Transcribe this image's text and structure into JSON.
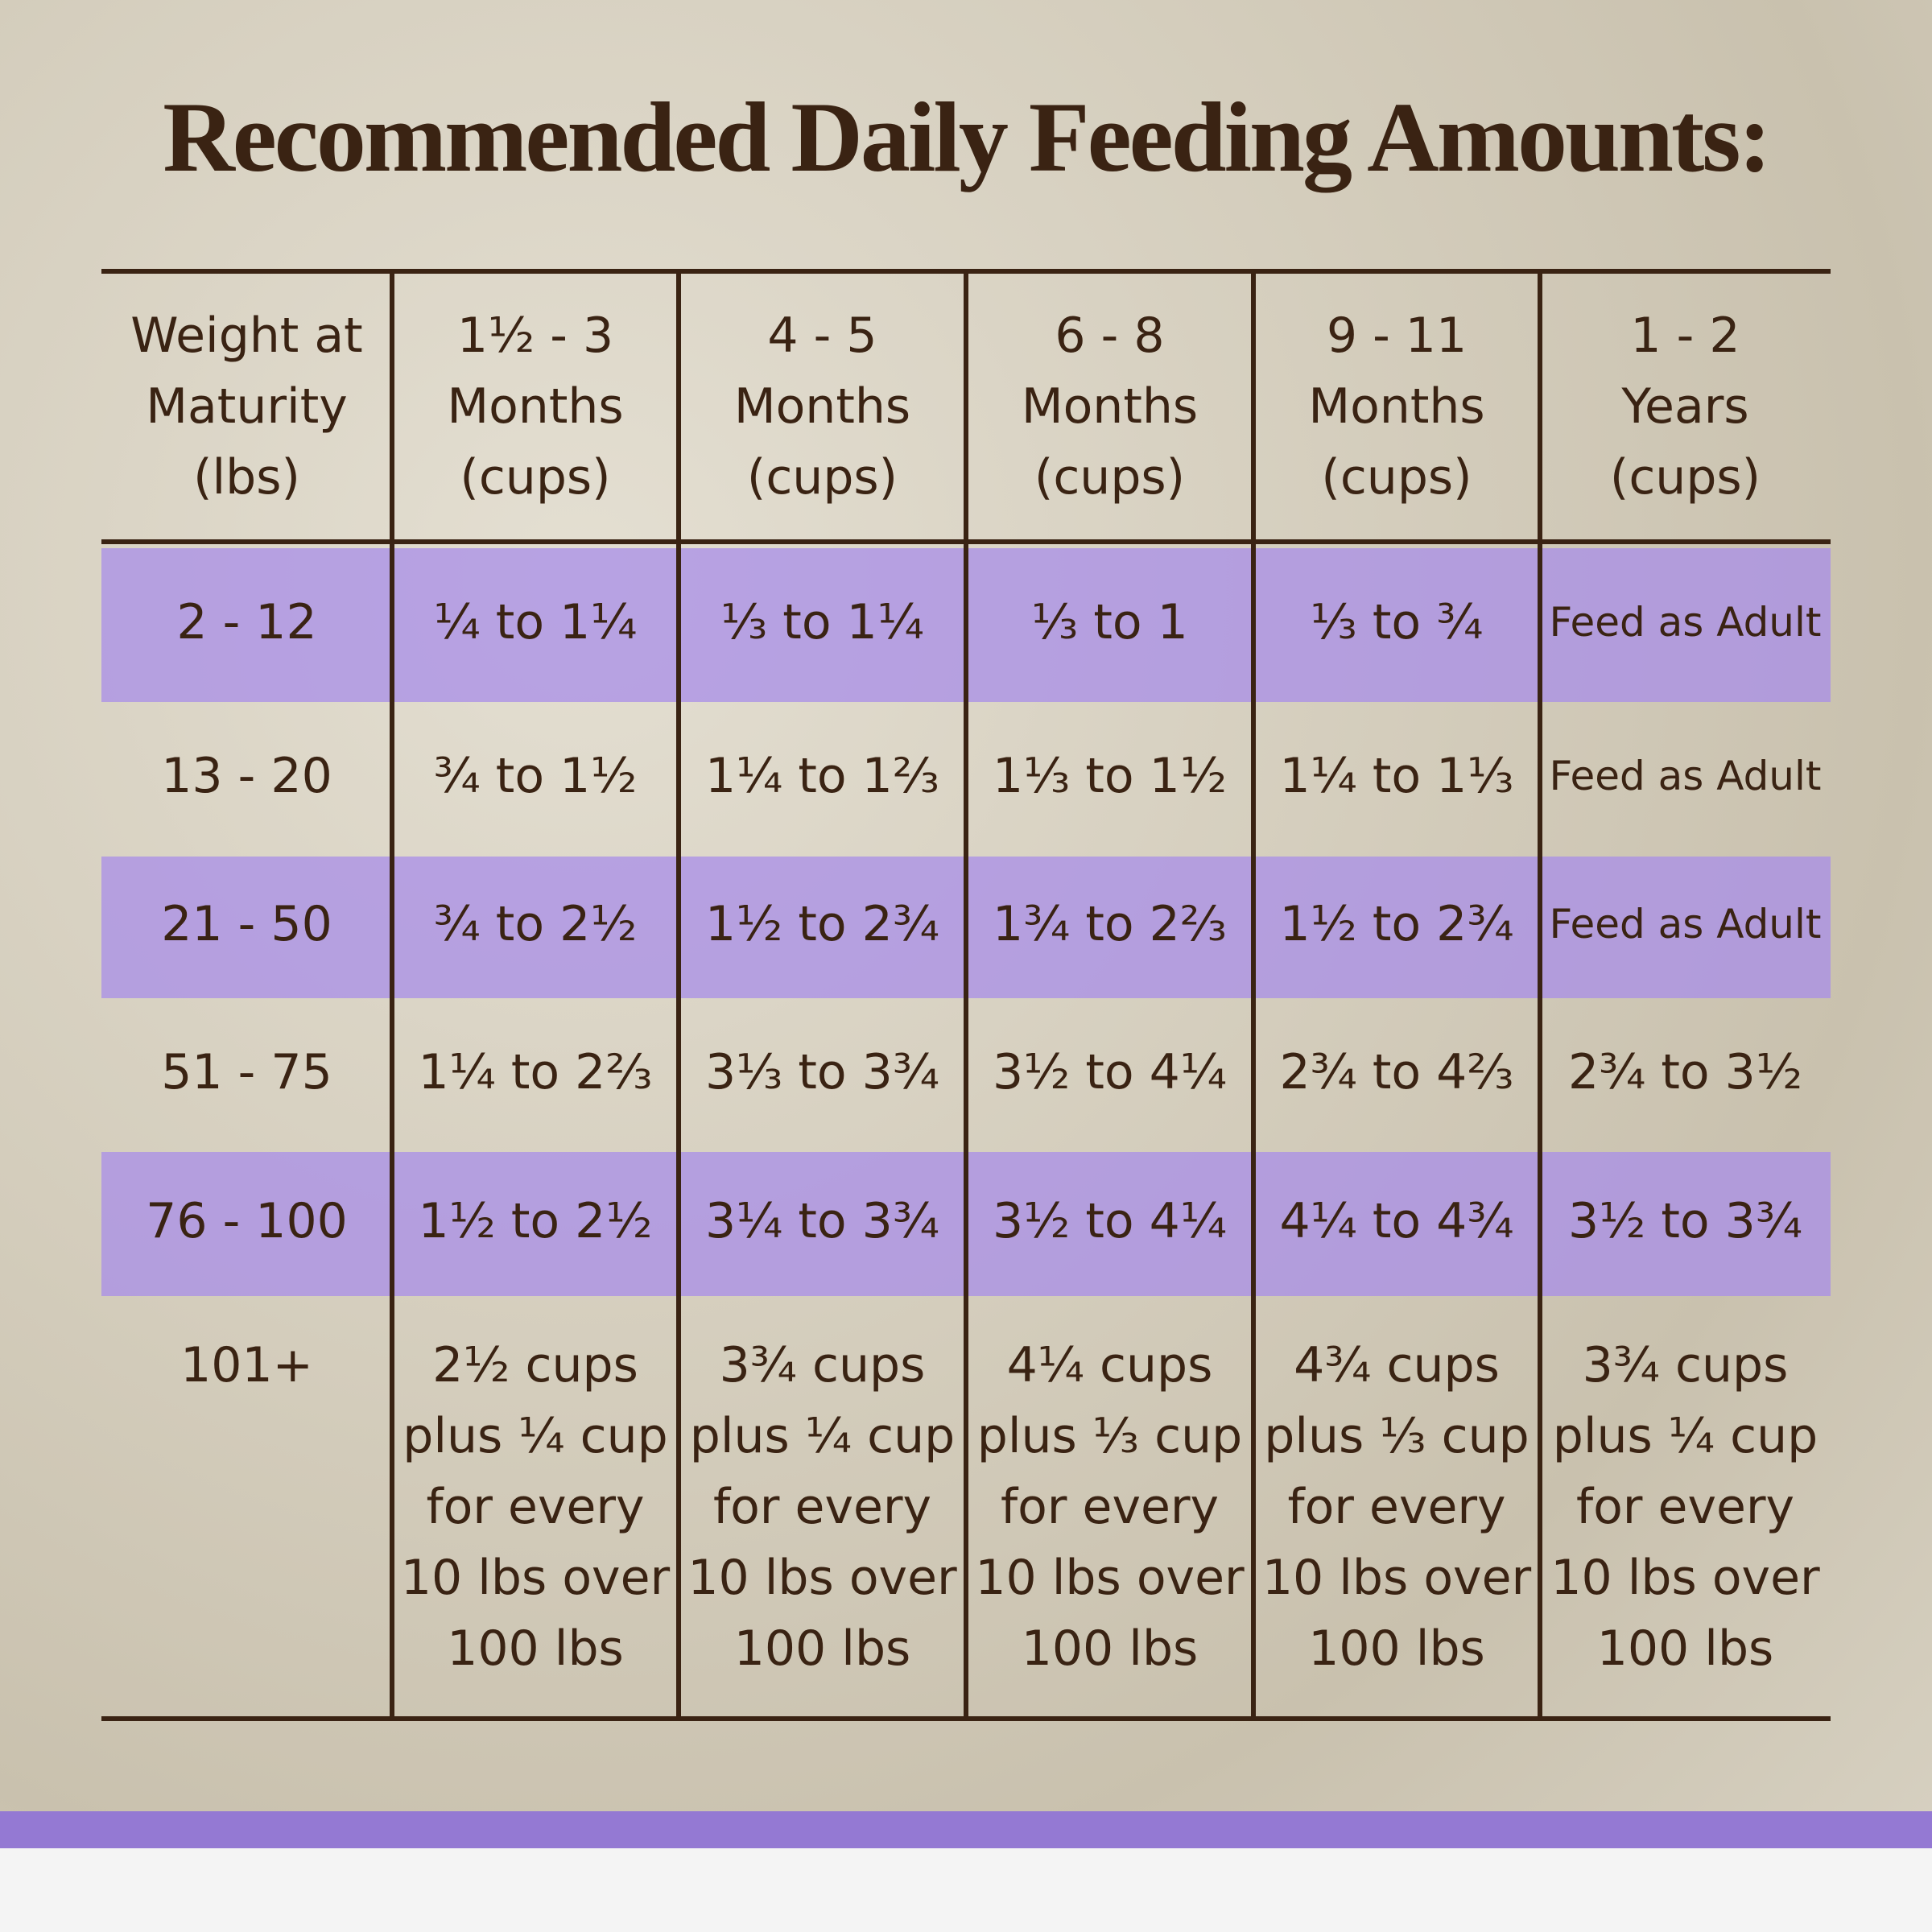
{
  "title": "Recommended Daily Feeding Amounts:",
  "table": {
    "header": [
      [
        "Weight at",
        "Maturity",
        "(lbs)"
      ],
      [
        "1½ - 3",
        "Months",
        "(cups)"
      ],
      [
        "4 - 5",
        "Months",
        "(cups)"
      ],
      [
        "6 - 8",
        "Months",
        "(cups)"
      ],
      [
        "9 - 11",
        "Months",
        "(cups)"
      ],
      [
        "1 - 2",
        "Years",
        "(cups)"
      ]
    ],
    "rows": [
      [
        "2 - 12",
        "¼ to 1¼",
        "⅓ to 1¼",
        "⅓ to 1",
        "⅓ to ¾",
        "Feed as Adult"
      ],
      [
        "13 - 20",
        "¾ to 1½",
        "1¼ to 1⅔",
        "1⅓ to 1½",
        "1¼ to 1⅓",
        "Feed as Adult"
      ],
      [
        "21 - 50",
        "¾ to 2½",
        "1½ to 2¾",
        "1¾ to 2⅔",
        "1½ to 2¾",
        "Feed as Adult"
      ],
      [
        "51 - 75",
        "1¼ to 2⅔",
        "3⅓ to 3¾",
        "3½ to 4¼",
        "2¾ to 4⅔",
        "2¾ to 3½"
      ],
      [
        "76 - 100",
        "1½ to 2½",
        "3¼ to 3¾",
        "3½ to 4¼",
        "4¼ to 4¾",
        "3½ to 3¾"
      ],
      [
        "101+",
        [
          "2½ cups",
          "plus ¼ cup",
          "for every",
          "10 lbs over",
          "100 lbs"
        ],
        [
          "3¾ cups",
          "plus ¼ cup",
          "for every",
          "10 lbs over",
          "100 lbs"
        ],
        [
          "4¼ cups",
          "plus ⅓ cup",
          "for every",
          "10 lbs over",
          "100 lbs"
        ],
        [
          "4¾ cups",
          "plus ⅓ cup",
          "for every",
          "10 lbs over",
          "100 lbs"
        ],
        [
          "3¾ cups",
          "plus ¼ cup",
          "for every",
          "10 lbs over",
          "100 lbs"
        ]
      ]
    ]
  }
}
